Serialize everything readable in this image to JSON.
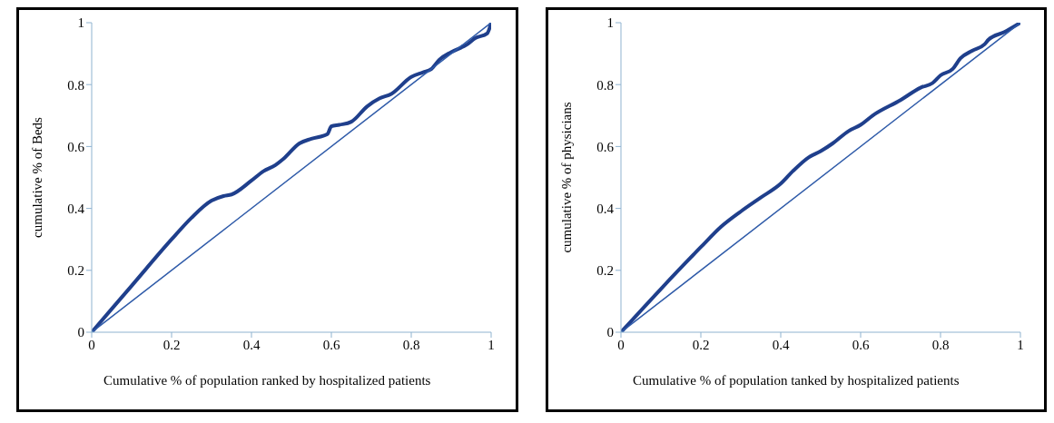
{
  "chart_data": [
    {
      "type": "line",
      "xlabel": "Cumulative % of population ranked by hospitalized patients",
      "ylabel": "cumulative % of Beds",
      "xlim": [
        0,
        1
      ],
      "ylim": [
        0,
        1
      ],
      "xticks": [
        0,
        0.2,
        0.4,
        0.6,
        0.8,
        1
      ],
      "yticks": [
        0,
        0.2,
        0.4,
        0.6,
        0.8,
        1
      ],
      "grid": false,
      "legend": false,
      "marker": "none",
      "line_style": "solid",
      "series": [
        {
          "color": "#1f3f8c",
          "x": [
            0,
            0.1,
            0.2,
            0.25,
            0.3,
            0.33,
            0.35,
            0.4,
            0.43,
            0.46,
            0.48,
            0.52,
            0.55,
            0.59,
            0.6,
            0.62,
            0.65,
            0.69,
            0.72,
            0.75,
            0.8,
            0.83,
            0.85,
            0.87,
            0.9,
            0.94,
            0.96,
            0.99,
            1
          ],
          "values": [
            0,
            0.15,
            0.3,
            0.37,
            0.425,
            0.44,
            0.445,
            0.49,
            0.52,
            0.54,
            0.56,
            0.61,
            0.625,
            0.64,
            0.665,
            0.67,
            0.68,
            0.73,
            0.755,
            0.77,
            0.825,
            0.84,
            0.85,
            0.88,
            0.905,
            0.93,
            0.95,
            0.965,
            1
          ]
        },
        {
          "color": "#2e5aa8",
          "x": [
            0,
            1
          ],
          "values": [
            0,
            1
          ]
        }
      ]
    },
    {
      "type": "line",
      "xlabel": "Cumulative % of population tanked by hospitalized patients",
      "ylabel": "cumulative % of physicians",
      "xlim": [
        0,
        1
      ],
      "ylim": [
        0,
        1
      ],
      "xticks": [
        0,
        0.2,
        0.4,
        0.6,
        0.8,
        1
      ],
      "yticks": [
        0,
        0.2,
        0.4,
        0.6,
        0.8,
        1
      ],
      "grid": false,
      "legend": false,
      "marker": "none",
      "line_style": "solid",
      "series": [
        {
          "color": "#1f3f8c",
          "x": [
            0,
            0.1,
            0.2,
            0.25,
            0.3,
            0.35,
            0.4,
            0.43,
            0.47,
            0.5,
            0.53,
            0.57,
            0.6,
            0.63,
            0.7,
            0.75,
            0.78,
            0.8,
            0.83,
            0.85,
            0.88,
            0.91,
            0.92,
            0.96,
            1
          ],
          "values": [
            0,
            0.14,
            0.275,
            0.34,
            0.39,
            0.435,
            0.48,
            0.52,
            0.565,
            0.585,
            0.61,
            0.65,
            0.67,
            0.7,
            0.75,
            0.79,
            0.805,
            0.83,
            0.85,
            0.885,
            0.91,
            0.93,
            0.945,
            0.97,
            1
          ]
        },
        {
          "color": "#2e5aa8",
          "x": [
            0,
            1
          ],
          "values": [
            0,
            1
          ]
        }
      ]
    }
  ]
}
